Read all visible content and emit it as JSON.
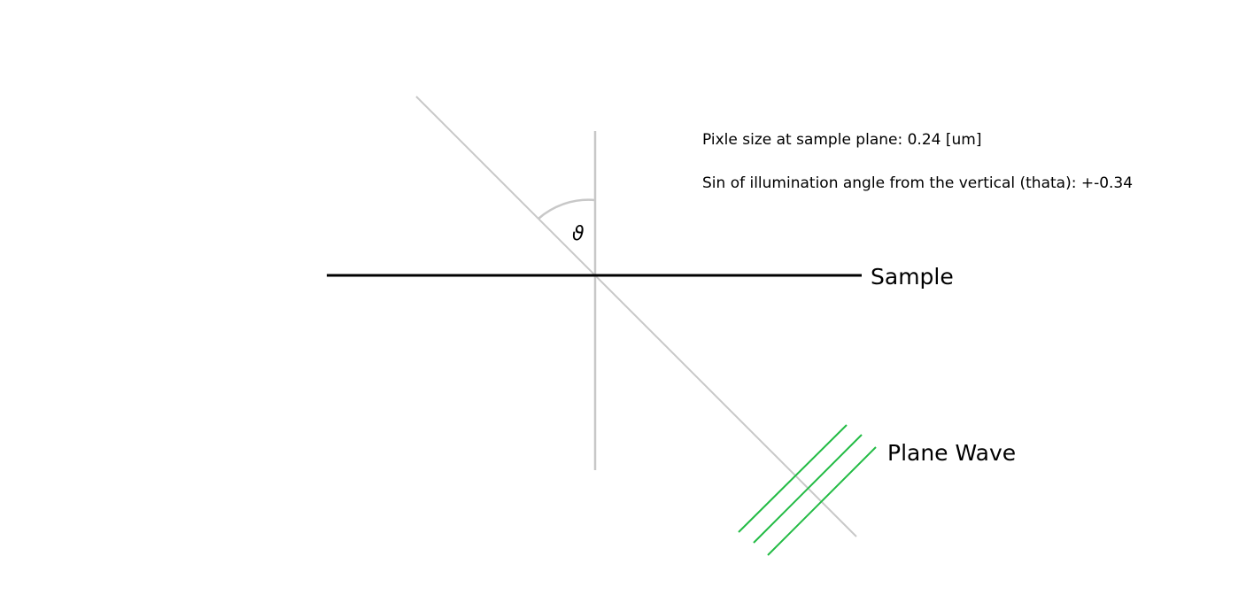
{
  "diagram": {
    "sample_label": "Sample",
    "plane_wave_label": "Plane Wave",
    "angle_symbol": "ϑ",
    "info_lines": [
      "Pixle size at sample plane: 0.24 [um]",
      "Sin of illumination angle from the vertical (thata): +-0.34"
    ],
    "colors": {
      "sample_line": "#000000",
      "guide_lines": "#c8c8c8",
      "plane_wave": "#22bb44"
    }
  }
}
